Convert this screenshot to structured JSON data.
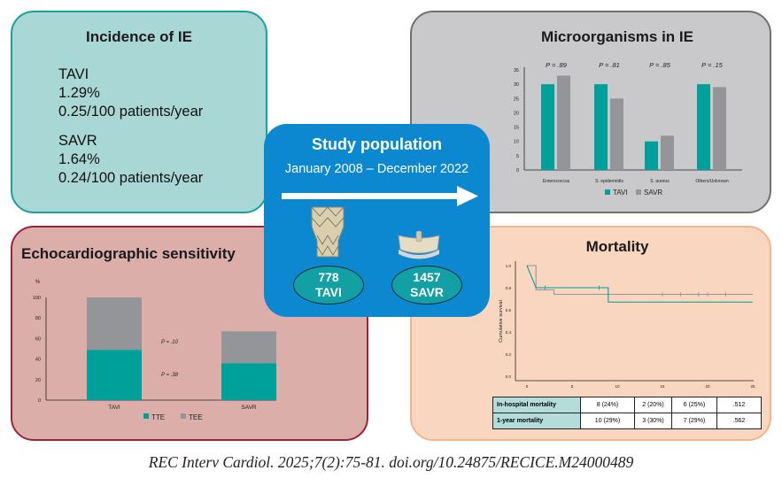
{
  "incidence": {
    "title": "Incidence of IE",
    "tavi": {
      "label": "TAVI",
      "pct": "1.29%",
      "rate": "0.25/100 patients/year"
    },
    "savr": {
      "label": "SAVR",
      "pct": "1.64%",
      "rate": "0.24/100 patients/year"
    }
  },
  "study": {
    "title": "Study population",
    "period": "January 2008 – December 2022",
    "tavi": {
      "n": "778",
      "label": "TAVI"
    },
    "savr": {
      "n": "1457",
      "label": "SAVR"
    }
  },
  "microorganisms": {
    "title": "Microorganisms in IE"
  },
  "echo": {
    "title": "Echocardiographic sensitivity"
  },
  "mortality": {
    "title": "Mortality",
    "table": [
      [
        "In-hospital mortality",
        "8 (24%)",
        "2 (20%)",
        "6 (25%)",
        ".512"
      ],
      [
        "1-year mortality",
        "10 (29%)",
        "3 (30%)",
        "7 (29%)",
        ".562"
      ]
    ]
  },
  "caption": "REC Interv Cardiol. 2025;7(2):75-81. doi.org/10.24875/RECICE.M24000489",
  "colors": {
    "teal": "#00a09a",
    "gray": "#949598",
    "blue": "#0b88cf"
  },
  "chart_data": [
    {
      "type": "bar",
      "categories": [
        "Enterococcus",
        "S. epidermidis",
        "S. aureus",
        "Others/Unknown"
      ],
      "series": [
        {
          "name": "TAVI",
          "values": [
            30,
            30,
            10,
            30
          ]
        },
        {
          "name": "SAVR",
          "values": [
            33,
            25,
            12,
            29
          ]
        }
      ],
      "annotations": [
        "P = .89",
        "P = .81",
        "P = .85",
        "P = .15"
      ],
      "yticks": [
        0,
        5,
        10,
        15,
        20,
        25,
        30,
        35
      ],
      "ylim": [
        0,
        35
      ],
      "legend": "bottom"
    },
    {
      "type": "bar",
      "stacked": true,
      "categories": [
        "TAVI",
        "SAVR"
      ],
      "ylabel": "%",
      "series": [
        {
          "name": "TTE",
          "values": [
            49,
            36
          ]
        },
        {
          "name": "TEE",
          "values": [
            51,
            31
          ]
        }
      ],
      "annotations": [
        "P = .10",
        "P = .38"
      ],
      "yticks": [
        0,
        20,
        40,
        60,
        80,
        100
      ],
      "ylim": [
        0,
        100
      ],
      "legend": "bottom"
    },
    {
      "type": "line",
      "step": true,
      "ylabel": "Cumulative survival",
      "xlim": [
        0,
        25
      ],
      "ylim": [
        0,
        1
      ],
      "xticks": [
        0,
        5,
        10,
        15,
        20,
        25
      ],
      "yticks": [
        "0.0",
        "0.2",
        "0.4",
        "0.6",
        "0.8",
        "1.0"
      ],
      "series": [
        {
          "color": "teal",
          "points": [
            [
              0,
              1
            ],
            [
              1,
              0.8
            ],
            [
              9,
              0.8
            ],
            [
              9,
              0.67
            ],
            [
              25,
              0.67
            ]
          ],
          "censor": [
            2,
            8
          ]
        },
        {
          "color": "gray",
          "points": [
            [
              0,
              1
            ],
            [
              1,
              1
            ],
            [
              1,
              0.78
            ],
            [
              3,
              0.78
            ],
            [
              3,
              0.74
            ],
            [
              25,
              0.74
            ]
          ],
          "censor": [
            15,
            17,
            19,
            20,
            22
          ]
        }
      ]
    }
  ]
}
